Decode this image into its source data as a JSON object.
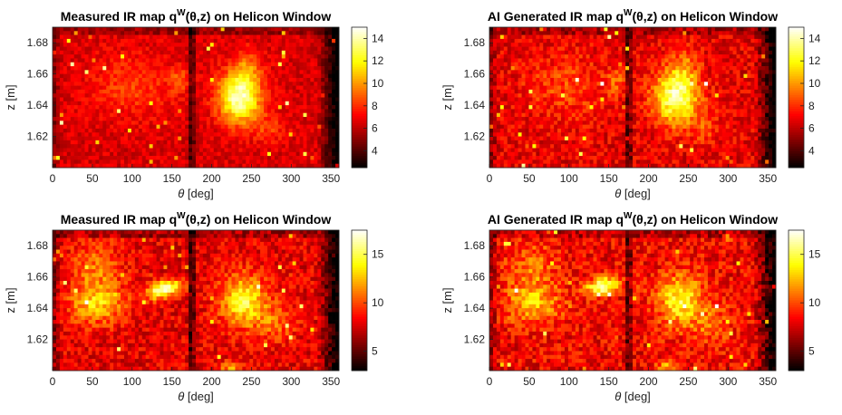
{
  "chart_data": [
    {
      "type": "heatmap",
      "title_main": "Measured IR map q",
      "title_sup": "W",
      "title_args": "(θ,z) on Helicon Window",
      "xlabel_sym": "θ",
      "xlabel_unit": "[deg]",
      "ylabel": "z [m]",
      "xlim": [
        0,
        360
      ],
      "ylim": [
        1.6,
        1.69
      ],
      "xticks": [
        "0",
        "50",
        "100",
        "150",
        "200",
        "250",
        "300",
        "350"
      ],
      "yticks": [
        "1.62",
        "1.64",
        "1.66",
        "1.68"
      ],
      "colorbar_ticks": [
        "4",
        "6",
        "8",
        "10",
        "12",
        "14"
      ],
      "clim": [
        2.5,
        15
      ],
      "colormap": "hot",
      "features": [
        {
          "theta": 230,
          "z": 1.642,
          "value": 14.5,
          "note": "peak"
        },
        {
          "theta": 170,
          "z": 1.645,
          "value": 4.0,
          "note": "dark seam"
        }
      ]
    },
    {
      "type": "heatmap",
      "title_main": "AI Generated IR map q",
      "title_sup": "W",
      "title_args": "(θ,z) on Helicon Window",
      "xlabel_sym": "θ",
      "xlabel_unit": "[deg]",
      "ylabel": "z [m]",
      "xlim": [
        0,
        360
      ],
      "ylim": [
        1.6,
        1.69
      ],
      "xticks": [
        "0",
        "50",
        "100",
        "150",
        "200",
        "250",
        "300",
        "350"
      ],
      "yticks": [
        "1.62",
        "1.64",
        "1.66",
        "1.68"
      ],
      "colorbar_ticks": [
        "4",
        "6",
        "8",
        "10",
        "12",
        "14"
      ],
      "clim": [
        2.5,
        15
      ],
      "colormap": "hot",
      "features": [
        {
          "theta": 230,
          "z": 1.642,
          "value": 13.5,
          "note": "peak"
        },
        {
          "theta": 170,
          "z": 1.645,
          "value": 4.0,
          "note": "dark seam"
        }
      ]
    },
    {
      "type": "heatmap",
      "title_main": "Measured IR map q",
      "title_sup": "W",
      "title_args": "(θ,z) on Helicon Window",
      "xlabel_sym": "θ",
      "xlabel_unit": "[deg]",
      "ylabel": "z [m]",
      "xlim": [
        0,
        360
      ],
      "ylim": [
        1.6,
        1.69
      ],
      "xticks": [
        "0",
        "50",
        "100",
        "150",
        "200",
        "250",
        "300",
        "350"
      ],
      "yticks": [
        "1.62",
        "1.64",
        "1.66",
        "1.68"
      ],
      "colorbar_ticks": [
        "5",
        "10",
        "15"
      ],
      "clim": [
        3,
        17.5
      ],
      "colormap": "hot",
      "features": [
        {
          "theta": 140,
          "z": 1.652,
          "value": 17,
          "note": "peak"
        },
        {
          "theta": 50,
          "z": 1.643,
          "value": 13,
          "note": "bright region"
        },
        {
          "theta": 235,
          "z": 1.645,
          "value": 14,
          "note": "bright region"
        }
      ]
    },
    {
      "type": "heatmap",
      "title_main": "AI Generated IR map q",
      "title_sup": "W",
      "title_args": "(θ,z) on Helicon Window",
      "xlabel_sym": "θ",
      "xlabel_unit": "[deg]",
      "ylabel": "z [m]",
      "xlim": [
        0,
        360
      ],
      "ylim": [
        1.6,
        1.69
      ],
      "xticks": [
        "0",
        "50",
        "100",
        "150",
        "200",
        "250",
        "300",
        "350"
      ],
      "yticks": [
        "1.62",
        "1.64",
        "1.66",
        "1.68"
      ],
      "colorbar_ticks": [
        "5",
        "10",
        "15"
      ],
      "clim": [
        3,
        17.5
      ],
      "colormap": "hot",
      "features": [
        {
          "theta": 140,
          "z": 1.655,
          "value": 16,
          "note": "peak"
        },
        {
          "theta": 50,
          "z": 1.643,
          "value": 12,
          "note": "bright region"
        },
        {
          "theta": 235,
          "z": 1.645,
          "value": 13,
          "note": "bright region"
        }
      ]
    }
  ]
}
